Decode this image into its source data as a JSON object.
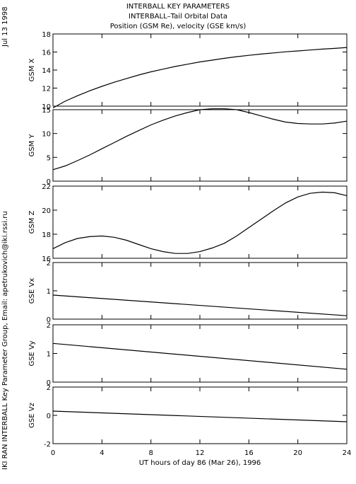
{
  "header": {
    "line1": "INTERBALL KEY PARAMETERS",
    "line2": "INTERBALL–Tail Orbital Data",
    "line3": "Position (GSM Re), velocity (GSE km/s)"
  },
  "side": {
    "date": "Jul 13 1998",
    "credit": "IKI RAN INTERBALL Key Parameter Group, Email: apetrukovich@iki.rssi.ru"
  },
  "chart_data": {
    "type": "line",
    "xlabel": "UT hours of day  86 (Mar 26), 1996",
    "xlim": [
      0,
      24
    ],
    "xticks": [
      0,
      4,
      8,
      12,
      16,
      20,
      24
    ],
    "grid": false,
    "panels": [
      {
        "ylabel": "GSM X",
        "ylim": [
          10,
          18
        ],
        "yticks": [
          10,
          12,
          14,
          16,
          18
        ],
        "x": [
          0,
          1,
          2,
          3,
          4,
          5,
          6,
          7,
          8,
          9,
          10,
          11,
          12,
          13,
          14,
          15,
          16,
          17,
          18,
          19,
          20,
          21,
          22,
          23,
          24
        ],
        "y": [
          9.8,
          10.55,
          11.15,
          11.7,
          12.2,
          12.65,
          13.05,
          13.45,
          13.8,
          14.1,
          14.4,
          14.65,
          14.9,
          15.1,
          15.3,
          15.48,
          15.63,
          15.77,
          15.9,
          16.02,
          16.12,
          16.22,
          16.32,
          16.4,
          16.5
        ]
      },
      {
        "ylabel": "GSM Y",
        "ylim": [
          0,
          15
        ],
        "yticks": [
          0,
          5,
          10,
          15
        ],
        "x": [
          0,
          1,
          2,
          3,
          4,
          5,
          6,
          7,
          8,
          9,
          10,
          11,
          12,
          13,
          14,
          15,
          16,
          17,
          18,
          19,
          20,
          21,
          22,
          23,
          24
        ],
        "y": [
          2.4,
          3.2,
          4.3,
          5.5,
          6.8,
          8.1,
          9.4,
          10.6,
          11.8,
          12.8,
          13.7,
          14.4,
          15.0,
          15.2,
          15.2,
          15.0,
          14.4,
          13.7,
          13.0,
          12.4,
          12.1,
          12.0,
          12.0,
          12.2,
          12.6
        ]
      },
      {
        "ylabel": "GSM Z",
        "ylim": [
          16,
          22
        ],
        "yticks": [
          16,
          18,
          20,
          22
        ],
        "x": [
          0,
          1,
          2,
          3,
          4,
          5,
          6,
          7,
          8,
          9,
          10,
          11,
          12,
          13,
          14,
          15,
          16,
          17,
          18,
          19,
          20,
          21,
          22,
          23,
          24
        ],
        "y": [
          16.8,
          17.3,
          17.65,
          17.8,
          17.85,
          17.75,
          17.5,
          17.15,
          16.8,
          16.55,
          16.4,
          16.4,
          16.55,
          16.85,
          17.25,
          17.85,
          18.55,
          19.25,
          19.95,
          20.6,
          21.1,
          21.4,
          21.5,
          21.45,
          21.2
        ]
      },
      {
        "ylabel": "GSE Vx",
        "ylim": [
          0,
          2
        ],
        "yticks": [
          0,
          1,
          2
        ],
        "x": [
          0,
          24
        ],
        "y": [
          0.85,
          0.12
        ]
      },
      {
        "ylabel": "GSE Vy",
        "ylim": [
          0,
          2
        ],
        "yticks": [
          0,
          1,
          2
        ],
        "x": [
          0,
          24
        ],
        "y": [
          1.35,
          0.45
        ]
      },
      {
        "ylabel": "GSE Vz",
        "ylim": [
          -2,
          2
        ],
        "yticks": [
          -2,
          0,
          2
        ],
        "x": [
          0,
          24
        ],
        "y": [
          0.3,
          -0.45
        ]
      }
    ]
  }
}
